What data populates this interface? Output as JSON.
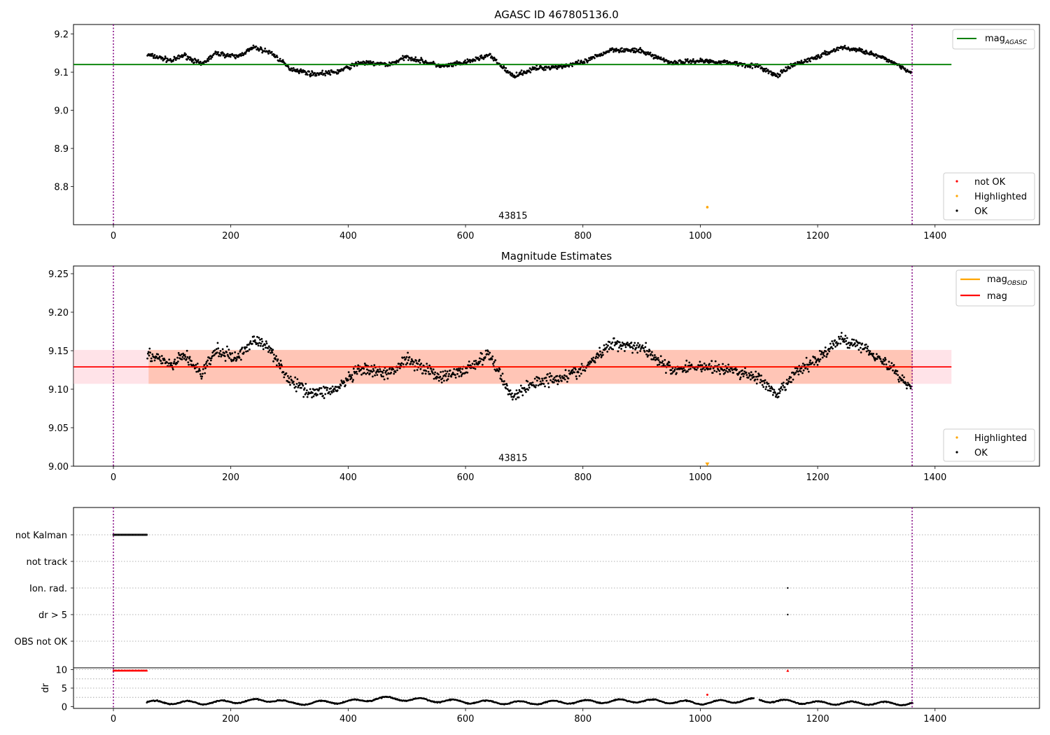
{
  "chart_data": [
    {
      "type": "scatter",
      "title": "AGASC ID 467805136.0",
      "xlim": [
        -68,
        1578
      ],
      "ylim": [
        8.7,
        9.225
      ],
      "xticks": [
        0,
        200,
        400,
        600,
        800,
        1000,
        1200,
        1400
      ],
      "yticks": [
        8.8,
        8.9,
        9.0,
        9.1,
        9.2
      ],
      "vlines": [
        0,
        1361
      ],
      "hline": {
        "label": "mag",
        "label_sub": "AGASC",
        "value": 9.12,
        "x": [
          -68,
          1428
        ],
        "color": "#008000"
      },
      "annotation": {
        "text": "43815",
        "x": 680,
        "y": 8.716
      },
      "highlighted_points": [
        {
          "x": 1012,
          "y": 8.746
        }
      ],
      "ok_trend": {
        "x": [
          60,
          100,
          120,
          150,
          175,
          210,
          240,
          270,
          300,
          340,
          380,
          420,
          470,
          500,
          560,
          600,
          640,
          680,
          720,
          760,
          800,
          850,
          900,
          950,
          1000,
          1050,
          1100,
          1130,
          1160,
          1200,
          1240,
          1280,
          1330,
          1360
        ],
        "y": [
          9.145,
          9.13,
          9.145,
          9.12,
          9.15,
          9.14,
          9.165,
          9.15,
          9.11,
          9.095,
          9.1,
          9.125,
          9.12,
          9.14,
          9.115,
          9.125,
          9.145,
          9.09,
          9.11,
          9.115,
          9.125,
          9.16,
          9.155,
          9.125,
          9.13,
          9.125,
          9.115,
          9.09,
          9.12,
          9.14,
          9.165,
          9.155,
          9.125,
          9.1
        ]
      },
      "legend": {
        "position": "top-right",
        "line_color": "#008000"
      },
      "legend2": {
        "position": "lower-right",
        "entries": [
          {
            "label": "not OK",
            "color": "#ff0000"
          },
          {
            "label": "Highlighted",
            "color": "#ffa500"
          },
          {
            "label": "OK",
            "color": "#000000"
          }
        ]
      }
    },
    {
      "type": "scatter",
      "title": "Magnitude Estimates",
      "xlim": [
        -68,
        1578
      ],
      "ylim": [
        9.0,
        9.26
      ],
      "xticks": [
        0,
        200,
        400,
        600,
        800,
        1000,
        1200,
        1400
      ],
      "yticks": [
        9.0,
        9.05,
        9.1,
        9.15,
        9.2,
        9.25
      ],
      "vlines": [
        0,
        1361
      ],
      "mag_line": {
        "label": "mag",
        "value": 9.129,
        "band": [
          9.107,
          9.151
        ],
        "x": [
          -68,
          1428
        ],
        "color": "#ff0000",
        "band_color": "#ffc0cb"
      },
      "obsid_line": {
        "label": "mag",
        "label_sub": "OBSID",
        "value": 9.129,
        "band": [
          9.107,
          9.151
        ],
        "x": [
          60,
          1362
        ],
        "color": "#ffa500",
        "band_color": "#ffa07a"
      },
      "annotation": {
        "text": "43815",
        "x": 680,
        "y": 9.007
      },
      "highlighted_marker": {
        "x": 1012,
        "y": 9.003
      },
      "ok_trend": {
        "x": [
          60,
          100,
          120,
          150,
          175,
          210,
          240,
          270,
          300,
          340,
          380,
          420,
          470,
          500,
          560,
          600,
          640,
          680,
          720,
          760,
          800,
          850,
          900,
          950,
          1000,
          1050,
          1100,
          1130,
          1160,
          1200,
          1240,
          1280,
          1330,
          1360
        ],
        "y": [
          9.145,
          9.13,
          9.145,
          9.12,
          9.15,
          9.14,
          9.165,
          9.15,
          9.11,
          9.095,
          9.1,
          9.125,
          9.12,
          9.14,
          9.115,
          9.125,
          9.145,
          9.09,
          9.11,
          9.115,
          9.125,
          9.16,
          9.155,
          9.125,
          9.13,
          9.125,
          9.115,
          9.09,
          9.12,
          9.14,
          9.165,
          9.155,
          9.125,
          9.1
        ]
      },
      "legend": {
        "position": "top-right"
      },
      "legend2": {
        "position": "lower-right",
        "entries": [
          {
            "label": "Highlighted",
            "color": "#ffa500"
          },
          {
            "label": "OK",
            "color": "#000000"
          }
        ]
      }
    },
    {
      "type": "scatter",
      "xlim": [
        -68,
        1578
      ],
      "xticks": [
        0,
        200,
        400,
        600,
        800,
        1000,
        1200,
        1400
      ],
      "vlines": [
        0,
        1361
      ],
      "flag_rows": [
        "not Kalman",
        "not track",
        "Ion. rad.",
        "dr > 5",
        "OBS not OK"
      ],
      "flags": [
        {
          "row": "not Kalman",
          "x_from": 0,
          "x_to": 57,
          "color": "#000000"
        },
        {
          "row": "Ion. rad.",
          "x": [
            1149
          ],
          "color": "#000000"
        },
        {
          "row": "dr > 5",
          "x": [
            1149
          ],
          "color": "#000000"
        }
      ],
      "dr_panel": {
        "ylabel": "dr",
        "ylim": [
          -0.5,
          10.5
        ],
        "yticks": [
          0,
          5,
          10
        ],
        "clipped": {
          "value": 9.8,
          "x_from": 0,
          "x_to": 57,
          "extra_x": [
            1149
          ],
          "color": "#ff0000"
        },
        "red_points": [
          {
            "x": 1012,
            "y": 3.2
          }
        ],
        "ok_x_range": [
          57,
          1362
        ],
        "ok_gaps": [
          [
            1092,
            1100
          ]
        ],
        "ok_trend": {
          "x": [
            57,
            150,
            280,
            300,
            420,
            450,
            600,
            700,
            900,
            1000,
            1090,
            1200,
            1360
          ],
          "y": [
            1.2,
            1.0,
            1.8,
            0.8,
            1.5,
            2.3,
            1.3,
            1.0,
            1.6,
            1.0,
            1.8,
            1.0,
            0.8
          ]
        },
        "black_points": [
          {
            "x": 457,
            "y": 2.3
          }
        ]
      }
    }
  ]
}
